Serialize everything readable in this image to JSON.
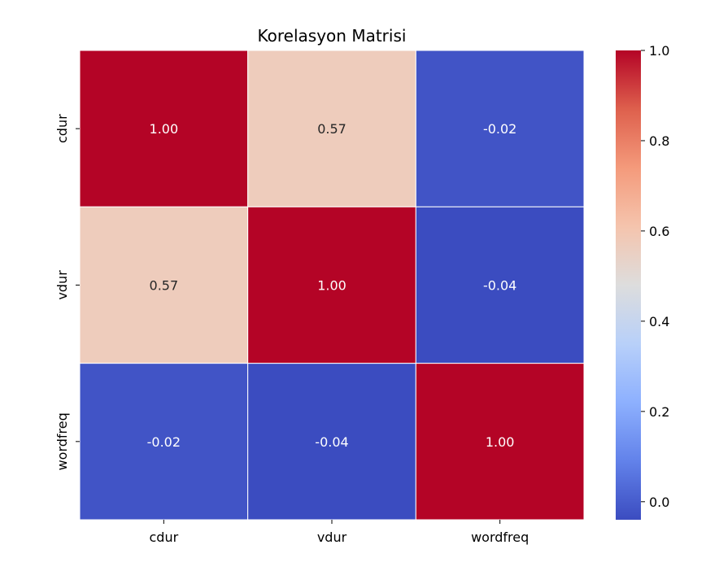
{
  "chart_data": {
    "type": "heatmap",
    "title": "Korelasyon Matrisi",
    "xlabel": "",
    "ylabel": "",
    "x_categories": [
      "cdur",
      "vdur",
      "wordfreq"
    ],
    "y_categories": [
      "cdur",
      "vdur",
      "wordfreq"
    ],
    "values": [
      [
        1.0,
        0.57,
        -0.02
      ],
      [
        0.57,
        1.0,
        -0.04
      ],
      [
        -0.02,
        -0.04,
        1.0
      ]
    ],
    "value_labels": [
      [
        "1.00",
        "0.57",
        "-0.02"
      ],
      [
        "0.57",
        "1.00",
        "-0.04"
      ],
      [
        "-0.02",
        "-0.04",
        "1.00"
      ]
    ],
    "colorbar": {
      "range": [
        -0.04,
        1.0
      ],
      "ticks": [
        "0.0",
        "0.2",
        "0.4",
        "0.6",
        "0.8",
        "1.0"
      ],
      "tick_values": [
        0.0,
        0.2,
        0.4,
        0.6,
        0.8,
        1.0
      ],
      "colormap": "coolwarm"
    },
    "grid": false,
    "cell_border_color": "#ffffff"
  }
}
